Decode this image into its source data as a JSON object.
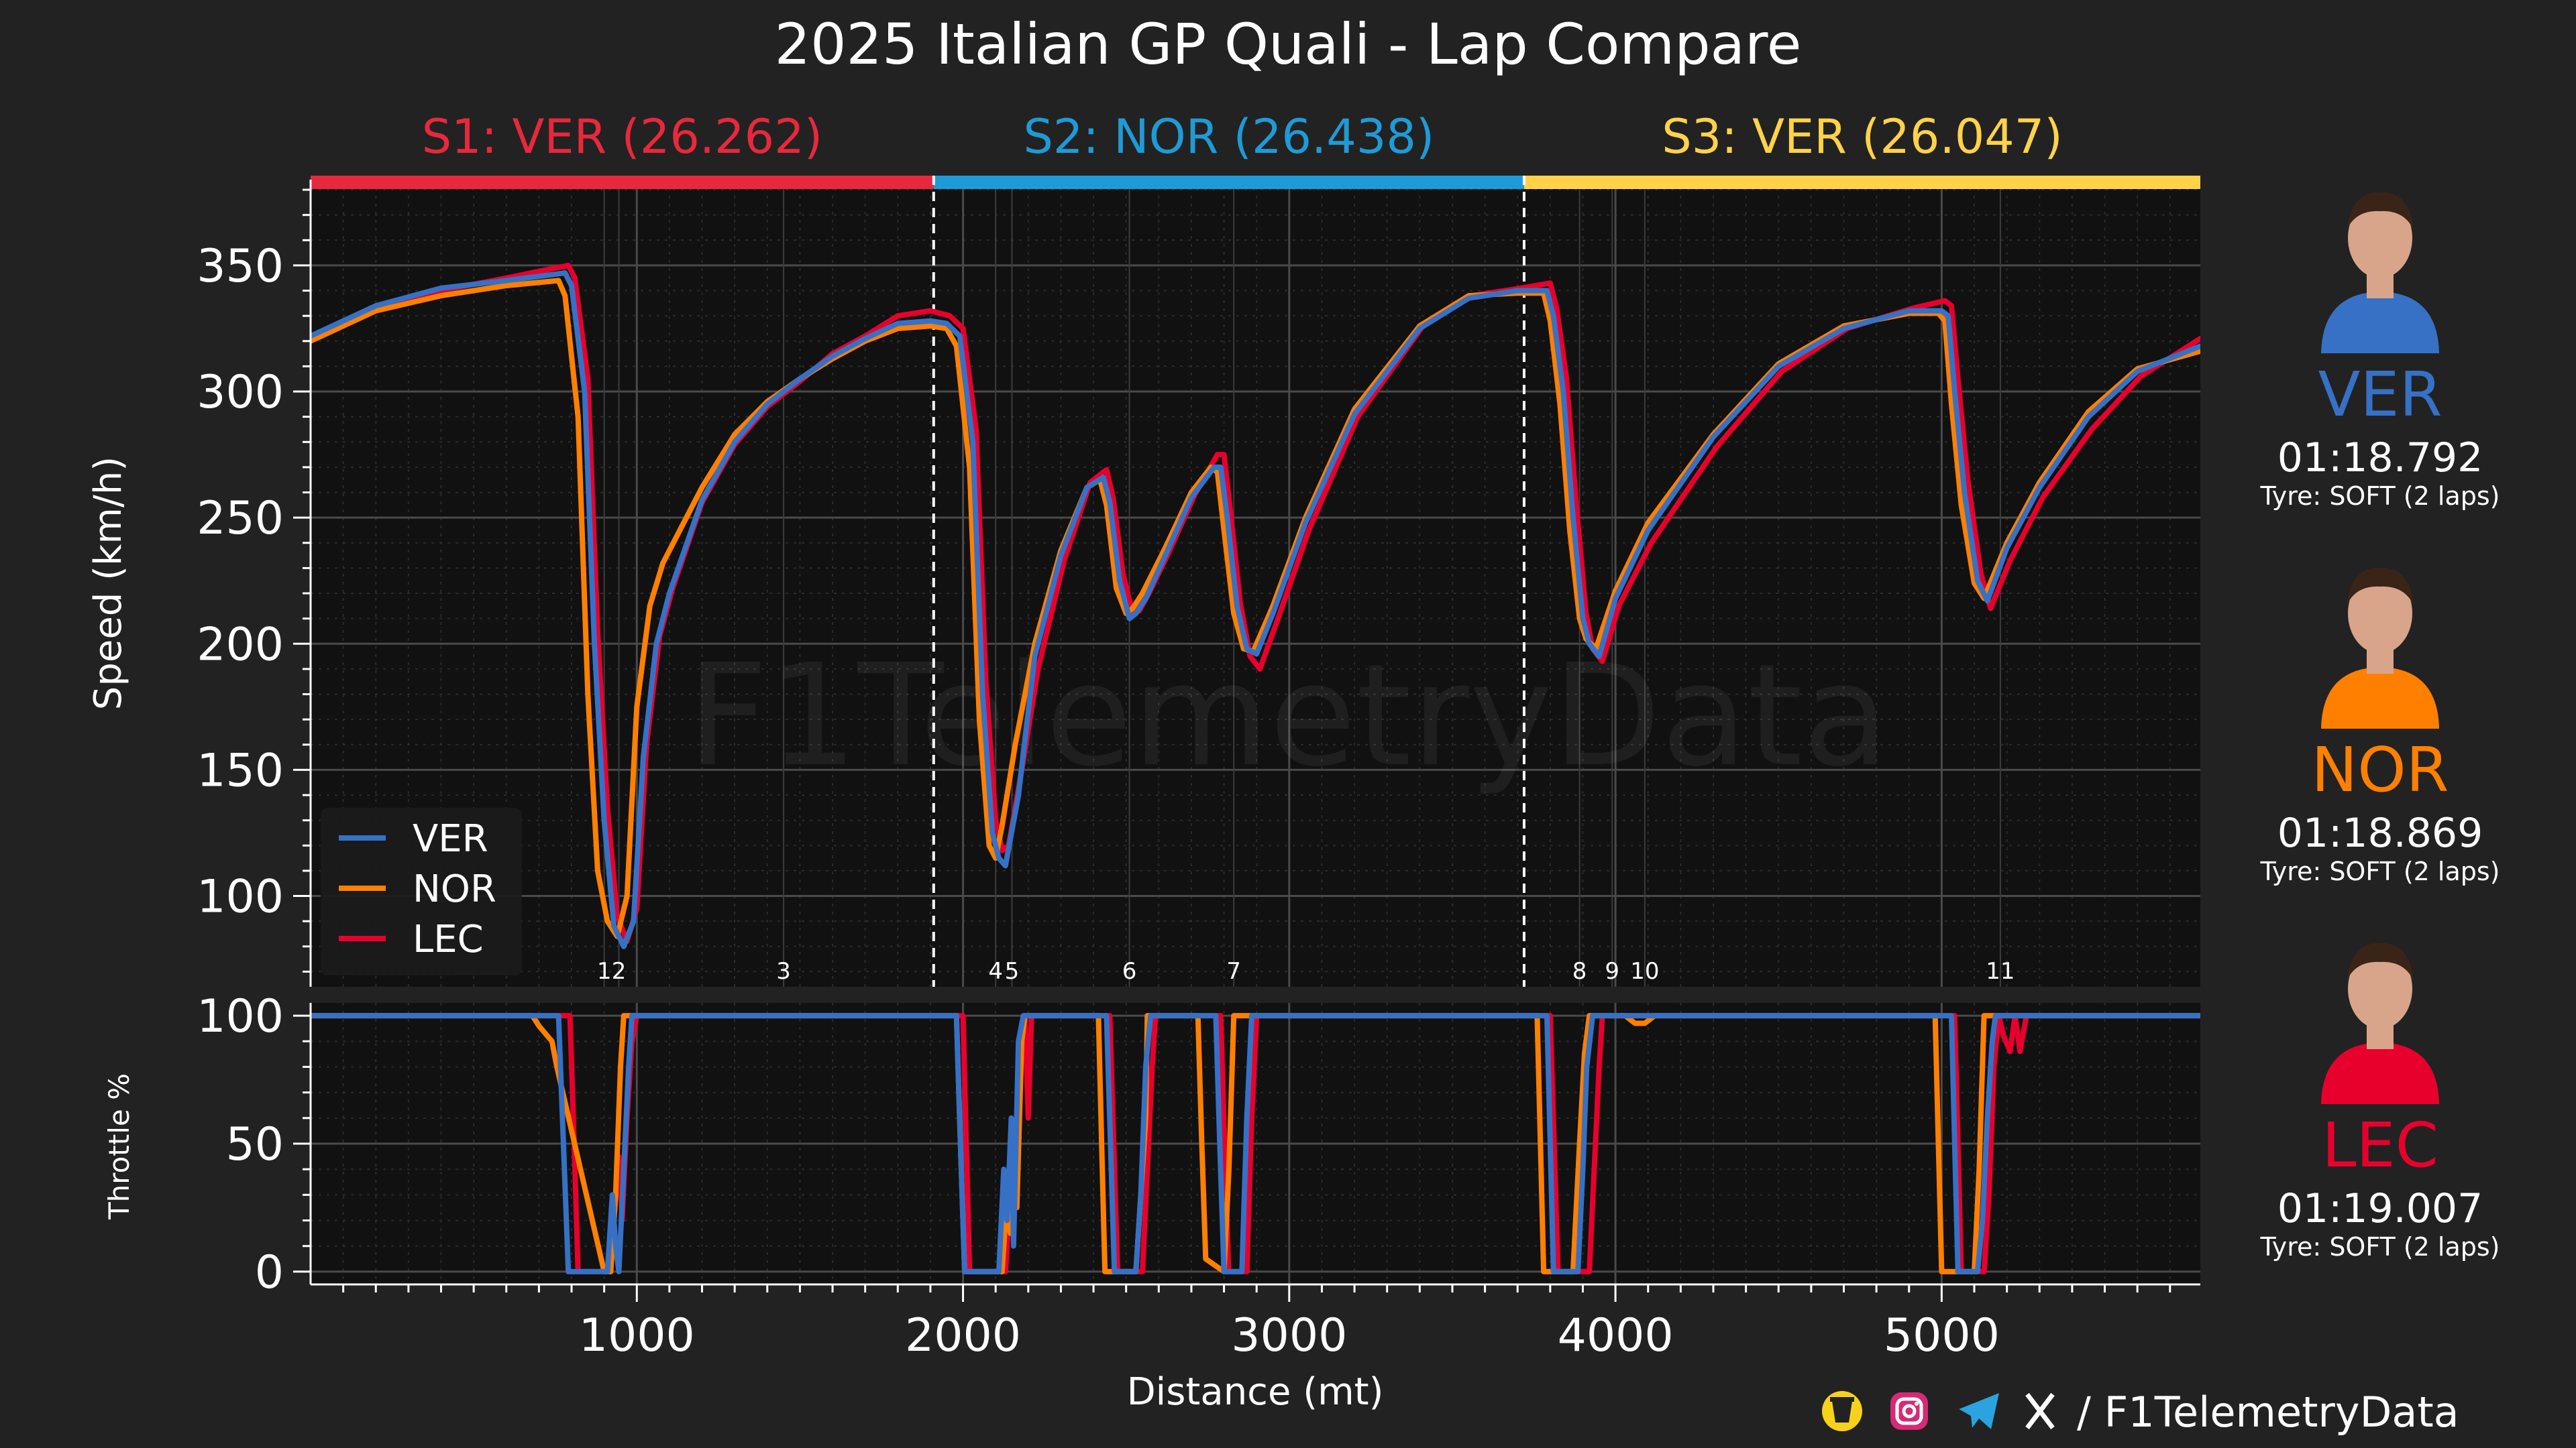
{
  "title": "2025 Italian GP Quali - Lap Compare",
  "watermark": "F1TelemetryData",
  "colors": {
    "background": "#222222",
    "plot_background": "#111111",
    "VER": "#3671C6",
    "NOR": "#FF8000",
    "LEC": "#E8002D",
    "S1": "#E8283C",
    "S2": "#1E9BD7",
    "S3": "#FFD24A"
  },
  "sectors": [
    {
      "label": "S1: VER (26.262)",
      "color": "#E8283C",
      "start": 0,
      "end": 1910
    },
    {
      "label": "S2: NOR (26.438)",
      "color": "#1E9BD7",
      "start": 1910,
      "end": 3720
    },
    {
      "label": "S3: VER (26.047)",
      "color": "#FFD24A",
      "start": 3720,
      "end": 5793
    }
  ],
  "corners": [
    {
      "label": "1",
      "distance": 900
    },
    {
      "label": "2",
      "distance": 945
    },
    {
      "label": "3",
      "distance": 1450
    },
    {
      "label": "4",
      "distance": 2100
    },
    {
      "label": "5",
      "distance": 2150
    },
    {
      "label": "6",
      "distance": 2510
    },
    {
      "label": "7",
      "distance": 2830
    },
    {
      "label": "8",
      "distance": 3890
    },
    {
      "label": "9",
      "distance": 3990
    },
    {
      "label": "10",
      "distance": 4090
    },
    {
      "label": "11",
      "distance": 5180
    }
  ],
  "drivers": [
    {
      "code": "VER",
      "time": "01:18.792",
      "tyre": "Tyre: SOFT (2 laps)",
      "color": "#3671C6"
    },
    {
      "code": "NOR",
      "time": "01:18.869",
      "tyre": "Tyre: SOFT (2 laps)",
      "color": "#FF8000"
    },
    {
      "code": "LEC",
      "time": "01:19.007",
      "tyre": "Tyre: SOFT (2 laps)",
      "color": "#E8002D"
    }
  ],
  "social": {
    "text": "/ F1TelemetryData",
    "icons": [
      "coffee-icon",
      "instagram-icon",
      "telegram-icon",
      "x-icon"
    ]
  },
  "chart_data": [
    {
      "type": "line",
      "title": "2025 Italian GP Quali - Lap Compare",
      "xlabel": "",
      "ylabel": "Speed (km/h)",
      "xlim": [
        0,
        5793
      ],
      "ylim": [
        64,
        384
      ],
      "xticks": [
        1000,
        2000,
        3000,
        4000,
        5000
      ],
      "yticks": [
        100,
        150,
        200,
        250,
        300,
        350
      ],
      "grid": true,
      "legend_position": "bottom-left",
      "series": [
        {
          "name": "VER",
          "color": "#3671C6",
          "x": [
            0,
            200,
            400,
            600,
            780,
            800,
            840,
            870,
            900,
            930,
            960,
            990,
            1020,
            1060,
            1100,
            1200,
            1300,
            1400,
            1500,
            1600,
            1700,
            1800,
            1900,
            1950,
            1990,
            2030,
            2060,
            2090,
            2110,
            2130,
            2170,
            2220,
            2300,
            2380,
            2430,
            2450,
            2480,
            2510,
            2530,
            2560,
            2620,
            2700,
            2770,
            2790,
            2810,
            2840,
            2870,
            2900,
            2950,
            3050,
            3200,
            3400,
            3550,
            3700,
            3790,
            3810,
            3840,
            3870,
            3900,
            3920,
            3950,
            4000,
            4100,
            4300,
            4500,
            4700,
            4900,
            5000,
            5020,
            5040,
            5070,
            5110,
            5140,
            5200,
            5300,
            5450,
            5600,
            5793
          ],
          "y": [
            322,
            334,
            341,
            344,
            347,
            342,
            300,
            200,
            130,
            88,
            80,
            90,
            155,
            200,
            220,
            257,
            280,
            295,
            305,
            314,
            321,
            327,
            328,
            327,
            322,
            280,
            180,
            125,
            115,
            112,
            140,
            195,
            235,
            262,
            266,
            256,
            225,
            210,
            212,
            218,
            235,
            258,
            270,
            270,
            250,
            215,
            198,
            196,
            212,
            248,
            291,
            325,
            337,
            340,
            340,
            330,
            300,
            250,
            210,
            200,
            195,
            218,
            245,
            282,
            310,
            325,
            332,
            332,
            330,
            300,
            260,
            225,
            217,
            238,
            262,
            290,
            308,
            318
          ]
        },
        {
          "name": "NOR",
          "color": "#FF8000",
          "x": [
            0,
            200,
            400,
            600,
            760,
            780,
            820,
            850,
            880,
            910,
            940,
            970,
            1000,
            1040,
            1080,
            1200,
            1300,
            1400,
            1500,
            1600,
            1700,
            1800,
            1900,
            1950,
            1980,
            2020,
            2050,
            2080,
            2100,
            2120,
            2160,
            2220,
            2300,
            2380,
            2420,
            2440,
            2470,
            2500,
            2520,
            2550,
            2620,
            2700,
            2760,
            2780,
            2800,
            2830,
            2860,
            2890,
            2950,
            3050,
            3200,
            3400,
            3550,
            3700,
            3780,
            3800,
            3830,
            3860,
            3890,
            3910,
            3940,
            4000,
            4100,
            4300,
            4500,
            4700,
            4900,
            4990,
            5010,
            5030,
            5060,
            5100,
            5130,
            5200,
            5300,
            5450,
            5600,
            5793
          ],
          "y": [
            320,
            332,
            338,
            342,
            344,
            338,
            290,
            180,
            110,
            90,
            84,
            100,
            175,
            215,
            232,
            262,
            283,
            296,
            305,
            313,
            320,
            325,
            326,
            325,
            318,
            270,
            170,
            120,
            115,
            128,
            160,
            200,
            237,
            262,
            265,
            255,
            222,
            212,
            214,
            220,
            238,
            260,
            270,
            268,
            245,
            212,
            198,
            197,
            215,
            250,
            293,
            326,
            338,
            339,
            339,
            328,
            295,
            245,
            210,
            202,
            198,
            221,
            248,
            283,
            311,
            326,
            331,
            331,
            328,
            295,
            255,
            224,
            218,
            240,
            264,
            292,
            309,
            316
          ]
        },
        {
          "name": "LEC",
          "color": "#E8002D",
          "x": [
            0,
            200,
            400,
            600,
            790,
            810,
            850,
            880,
            910,
            940,
            970,
            1000,
            1030,
            1070,
            1110,
            1200,
            1300,
            1400,
            1500,
            1600,
            1700,
            1800,
            1900,
            1960,
            2000,
            2040,
            2070,
            2100,
            2120,
            2140,
            2180,
            2230,
            2310,
            2390,
            2440,
            2460,
            2490,
            2520,
            2540,
            2570,
            2630,
            2710,
            2780,
            2800,
            2820,
            2850,
            2880,
            2910,
            2960,
            3060,
            3210,
            3410,
            3560,
            3710,
            3800,
            3820,
            3850,
            3880,
            3910,
            3930,
            3960,
            4010,
            4110,
            4310,
            4510,
            4710,
            4910,
            5010,
            5030,
            5050,
            5080,
            5120,
            5150,
            5210,
            5310,
            5460,
            5610,
            5793
          ],
          "y": [
            321,
            333,
            340,
            345,
            350,
            345,
            305,
            205,
            135,
            92,
            82,
            95,
            160,
            203,
            222,
            256,
            279,
            294,
            304,
            315,
            322,
            330,
            332,
            330,
            325,
            285,
            185,
            130,
            118,
            120,
            150,
            190,
            233,
            264,
            269,
            258,
            228,
            212,
            213,
            220,
            236,
            259,
            275,
            275,
            252,
            216,
            195,
            190,
            208,
            245,
            290,
            326,
            338,
            341,
            343,
            333,
            305,
            255,
            212,
            198,
            193,
            215,
            240,
            278,
            308,
            325,
            333,
            336,
            334,
            305,
            265,
            228,
            214,
            233,
            258,
            285,
            306,
            321
          ]
        }
      ]
    },
    {
      "type": "line",
      "title": "",
      "xlabel": "Distance (mt)",
      "ylabel": "Throttle %",
      "xlim": [
        0,
        5793
      ],
      "ylim": [
        -5,
        105
      ],
      "xticks": [
        1000,
        2000,
        3000,
        4000,
        5000
      ],
      "yticks": [
        0,
        50,
        100
      ],
      "grid": true,
      "series": [
        {
          "name": "VER",
          "color": "#3671C6",
          "x": [
            0,
            760,
            775,
            790,
            910,
            925,
            935,
            945,
            960,
            975,
            985,
            1000,
            1980,
            1992,
            2005,
            2110,
            2125,
            2135,
            2148,
            2155,
            2170,
            2185,
            2195,
            2440,
            2452,
            2464,
            2530,
            2545,
            2560,
            2575,
            2590,
            2775,
            2787,
            2800,
            2855,
            2870,
            2885,
            3790,
            3800,
            3810,
            3885,
            3900,
            3912,
            3930,
            5030,
            5040,
            5050,
            5110,
            5125,
            5140,
            5155,
            5165,
            5793
          ],
          "y": [
            100,
            100,
            50,
            0,
            0,
            30,
            10,
            0,
            40,
            80,
            100,
            100,
            100,
            50,
            0,
            0,
            40,
            20,
            60,
            10,
            90,
            100,
            100,
            100,
            50,
            0,
            0,
            30,
            80,
            100,
            100,
            100,
            50,
            0,
            0,
            60,
            100,
            100,
            50,
            0,
            0,
            40,
            80,
            100,
            100,
            50,
            0,
            0,
            20,
            60,
            90,
            100,
            100
          ]
        },
        {
          "name": "NOR",
          "color": "#FF8000",
          "x": [
            0,
            680,
            700,
            740,
            755,
            900,
            920,
            935,
            950,
            960,
            1980,
            1992,
            2005,
            2120,
            2135,
            2145,
            2155,
            2165,
            2180,
            2190,
            2415,
            2425,
            2435,
            2530,
            2545,
            2560,
            2565,
            2580,
            2720,
            2732,
            2744,
            2800,
            2815,
            2830,
            3760,
            3770,
            3780,
            3870,
            3890,
            3905,
            3920,
            4030,
            4060,
            4090,
            4120,
            4980,
            4990,
            5000,
            5100,
            5115,
            5130,
            5793
          ],
          "y": [
            100,
            100,
            96,
            90,
            80,
            0,
            0,
            30,
            80,
            100,
            100,
            50,
            0,
            0,
            30,
            15,
            50,
            25,
            90,
            100,
            100,
            50,
            0,
            0,
            30,
            60,
            100,
            100,
            100,
            50,
            5,
            0,
            40,
            100,
            100,
            50,
            0,
            0,
            50,
            85,
            100,
            100,
            97,
            97,
            100,
            100,
            50,
            0,
            0,
            40,
            100,
            100
          ]
        },
        {
          "name": "LEC",
          "color": "#E8002D",
          "x": [
            0,
            795,
            808,
            820,
            920,
            935,
            945,
            955,
            970,
            985,
            1000,
            2000,
            2010,
            2020,
            2130,
            2145,
            2155,
            2170,
            2190,
            2200,
            2210,
            2450,
            2462,
            2474,
            2550,
            2565,
            2580,
            2590,
            2790,
            2802,
            2814,
            2870,
            2885,
            2900,
            3800,
            3812,
            3824,
            3920,
            3935,
            3950,
            3960,
            5040,
            5050,
            5060,
            5130,
            5145,
            5160,
            5175,
            5190,
            5210,
            5225,
            5240,
            5260,
            5793
          ],
          "y": [
            100,
            100,
            50,
            0,
            0,
            30,
            45,
            20,
            60,
            90,
            100,
            100,
            50,
            0,
            0,
            30,
            20,
            70,
            100,
            60,
            100,
            100,
            50,
            0,
            0,
            40,
            80,
            100,
            100,
            50,
            0,
            0,
            60,
            100,
            100,
            50,
            0,
            0,
            40,
            80,
            100,
            100,
            50,
            0,
            0,
            30,
            80,
            100,
            92,
            86,
            100,
            86,
            100,
            100
          ]
        }
      ]
    }
  ]
}
